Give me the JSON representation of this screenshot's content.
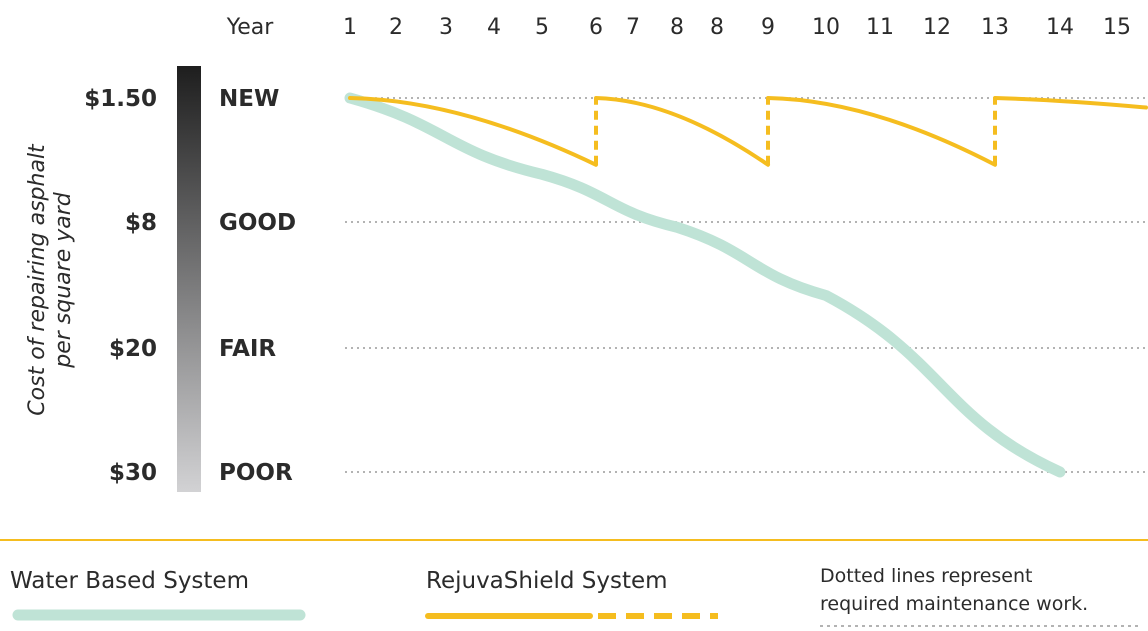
{
  "chart_data": {
    "type": "line",
    "xlabel": "Year",
    "x": [
      "1",
      "2",
      "3",
      "4",
      "5",
      "6",
      "7",
      "8",
      "8",
      "9",
      "10",
      "11",
      "12",
      "13",
      "14",
      "15"
    ],
    "ylabel": "Cost of repairing asphalt per square yard",
    "y_levels": [
      {
        "price": "$1.50",
        "condition": "NEW"
      },
      {
        "price": "$8",
        "condition": "GOOD"
      },
      {
        "price": "$20",
        "condition": "FAIR"
      },
      {
        "price": "$30",
        "condition": "POOR"
      }
    ],
    "series": [
      {
        "name": "Water Based System",
        "color": "#bfe3d6",
        "style": "solid",
        "points": [
          [
            1,
            1.5
          ],
          [
            5,
            5.5
          ],
          [
            8,
            8.5
          ],
          [
            11,
            15
          ],
          [
            15,
            30
          ]
        ]
      },
      {
        "name": "RejuvaShield System",
        "color": "#f5bd1f",
        "style": "sawtooth",
        "segments": [
          {
            "x": [
              1,
              6
            ],
            "y": [
              1.5,
              5
            ],
            "restore_to": 1.5
          },
          {
            "x": [
              6,
              10
            ],
            "y": [
              1.5,
              5
            ],
            "restore_to": 1.5
          },
          {
            "x": [
              10,
              14
            ],
            "y": [
              1.5,
              5
            ],
            "restore_to": 1.5
          },
          {
            "x": [
              14,
              15
            ],
            "y": [
              1.5,
              2
            ]
          }
        ]
      }
    ],
    "gridlines": "dotted",
    "legend": {
      "position": "bottom",
      "note": [
        "Dotted lines represent",
        "required maintenance work."
      ]
    },
    "colors": {
      "scale_top": "#1e1e1e",
      "scale_bottom": "#d2d2d4",
      "divider": "#f5bd1f",
      "grid": "#9a9a9a"
    }
  }
}
